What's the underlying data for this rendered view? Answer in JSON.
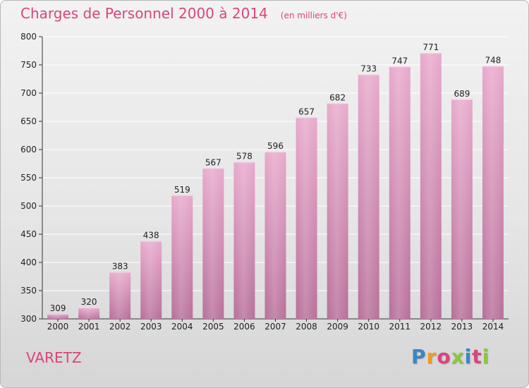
{
  "title": "Charges de Personnel 2000 à 2014",
  "subtitle": "(en milliers d'€)",
  "commune": "VARETZ",
  "brand": {
    "text": "Proxiti",
    "colors": [
      "#3a86c8",
      "#f29a1e",
      "#d9457c",
      "#8cc63f",
      "#3a86c8",
      "#d9457c",
      "#8cc63f"
    ]
  },
  "colors": {
    "bar_top": "#e8a9cc",
    "bar_bottom": "#b86f9a",
    "title": "#d9457c",
    "grid": "#ffffff"
  },
  "chart_data": {
    "type": "bar",
    "title": "Charges de Personnel 2000 à 2014",
    "subtitle": "(en milliers d'€)",
    "categories": [
      "2000",
      "2001",
      "2002",
      "2003",
      "2004",
      "2005",
      "2006",
      "2007",
      "2008",
      "2009",
      "2010",
      "2011",
      "2012",
      "2013",
      "2014"
    ],
    "values": [
      309,
      320,
      383,
      438,
      519,
      567,
      578,
      596,
      657,
      682,
      733,
      747,
      771,
      689,
      748
    ],
    "ylim": [
      300,
      800
    ],
    "yticks": [
      300,
      350,
      400,
      450,
      500,
      550,
      600,
      650,
      700,
      750,
      800
    ],
    "grid": true,
    "legend": "none"
  }
}
